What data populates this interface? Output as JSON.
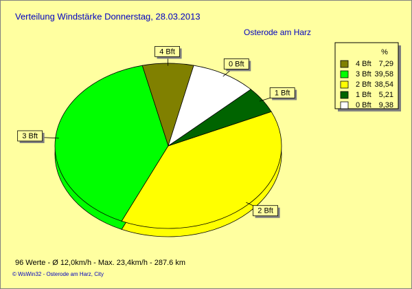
{
  "chart_data": {
    "type": "pie",
    "title": "Verteilung Windstärke  Donnerstag, 28.03.2013",
    "subtitle": "Osterode am Harz",
    "legend_title": "%",
    "categories": [
      "4 Bft",
      "3 Bft",
      "2 Bft",
      "1 Bft",
      "0 Bft"
    ],
    "values": [
      7.29,
      39.58,
      38.54,
      5.21,
      9.38
    ],
    "value_labels": [
      "7,29",
      "39,58",
      "38,54",
      "5,21",
      "9,38"
    ],
    "colors": [
      "#808000",
      "#00ff00",
      "#ffff00",
      "#006400",
      "#ffffff"
    ],
    "legend": "upper right",
    "annotations": [
      "96 Werte   -   Ø 12,0km/h  -  Max. 23,4km/h  -   287.6 km",
      "© WsWin32  -  Osterode am Harz, City"
    ]
  }
}
